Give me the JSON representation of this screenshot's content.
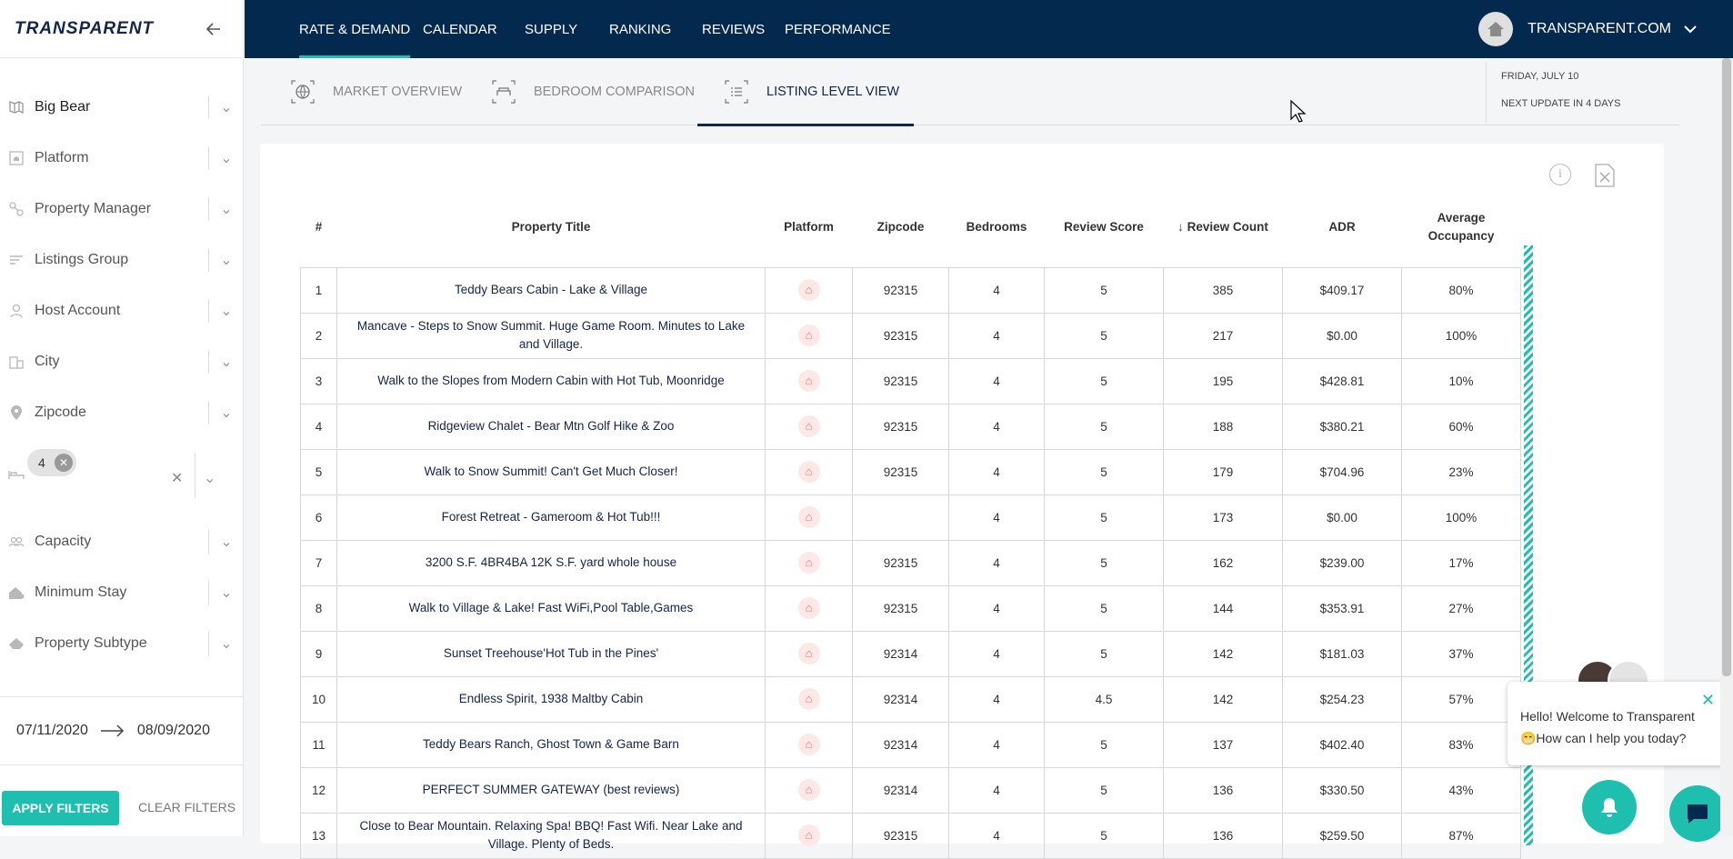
{
  "app": {
    "logo": "TRANSPARENT"
  },
  "nav": {
    "tabs": [
      "RATE & DEMAND",
      "CALENDAR",
      "SUPPLY",
      "RANKING",
      "REVIEWS",
      "PERFORMANCE"
    ],
    "account": "TRANSPARENT.COM"
  },
  "sidebar": {
    "filters": [
      "Big Bear",
      "Platform",
      "Property Manager",
      "Listings Group",
      "Host Account",
      "City",
      "Zipcode"
    ],
    "filters2": [
      "Capacity",
      "Minimum Stay",
      "Property Subtype"
    ],
    "bedroom_chip": "4",
    "date_from": "07/11/2020",
    "date_to": "08/09/2020",
    "apply": "APPLY FILTERS",
    "clear": "CLEAR FILTERS"
  },
  "subtabs": [
    "MARKET OVERVIEW",
    "BEDROOM COMPARISON",
    "LISTING LEVEL VIEW"
  ],
  "date_info": {
    "date": "FRIDAY, JULY 10",
    "next_update": "NEXT UPDATE IN 4 DAYS"
  },
  "table": {
    "headers": [
      "#",
      "Property Title",
      "Platform",
      "Zipcode",
      "Bedrooms",
      "Review Score",
      "↓ Review Count",
      "ADR",
      "Average Occupancy"
    ],
    "rows": [
      [
        "1",
        "Teddy Bears Cabin - Lake & Village",
        "92315",
        "4",
        "5",
        "385",
        "$409.17",
        "80%"
      ],
      [
        "2",
        "Mancave - Steps to Snow Summit. Huge Game Room. Minutes to Lake and Village.",
        "92315",
        "4",
        "5",
        "217",
        "$0.00",
        "100%"
      ],
      [
        "3",
        "Walk to the Slopes from Modern Cabin with Hot Tub, Moonridge",
        "92315",
        "4",
        "5",
        "195",
        "$428.81",
        "10%"
      ],
      [
        "4",
        "Ridgeview Chalet - Bear Mtn Golf Hike & Zoo",
        "92315",
        "4",
        "5",
        "188",
        "$380.21",
        "60%"
      ],
      [
        "5",
        "Walk to Snow Summit! Can't Get Much Closer!",
        "92315",
        "4",
        "5",
        "179",
        "$704.96",
        "23%"
      ],
      [
        "6",
        "Forest Retreat - Gameroom & Hot Tub!!!",
        "",
        "4",
        "5",
        "173",
        "$0.00",
        "100%"
      ],
      [
        "7",
        "3200 S.F. 4BR4BA 12K S.F. yard whole house",
        "92315",
        "4",
        "5",
        "162",
        "$239.00",
        "17%"
      ],
      [
        "8",
        "Walk to Village & Lake! Fast WiFi,Pool Table,Games",
        "92315",
        "4",
        "5",
        "144",
        "$353.91",
        "27%"
      ],
      [
        "9",
        "Sunset Treehouse'Hot Tub in the Pines'",
        "92314",
        "4",
        "5",
        "142",
        "$181.03",
        "37%"
      ],
      [
        "10",
        "Endless Spirit, 1938 Maltby Cabin",
        "92314",
        "4",
        "4.5",
        "142",
        "$254.23",
        "57%"
      ],
      [
        "11",
        "Teddy Bears Ranch, Ghost Town & Game Barn",
        "92314",
        "4",
        "5",
        "137",
        "$402.40",
        "83%"
      ],
      [
        "12",
        "PERFECT SUMMER GATEWAY (best reviews)",
        "92314",
        "4",
        "5",
        "136",
        "$330.50",
        "43%"
      ],
      [
        "13",
        "Close to Bear Mountain. Relaxing Spa! BBQ! Fast Wifi. Near Lake and Village. Plenty of Beds.",
        "92315",
        "4",
        "5",
        "136",
        "$259.50",
        "87%"
      ]
    ]
  },
  "chat": {
    "line1": "Hello! Welcome to Transparent",
    "line2": "😁How can I help you today?"
  }
}
